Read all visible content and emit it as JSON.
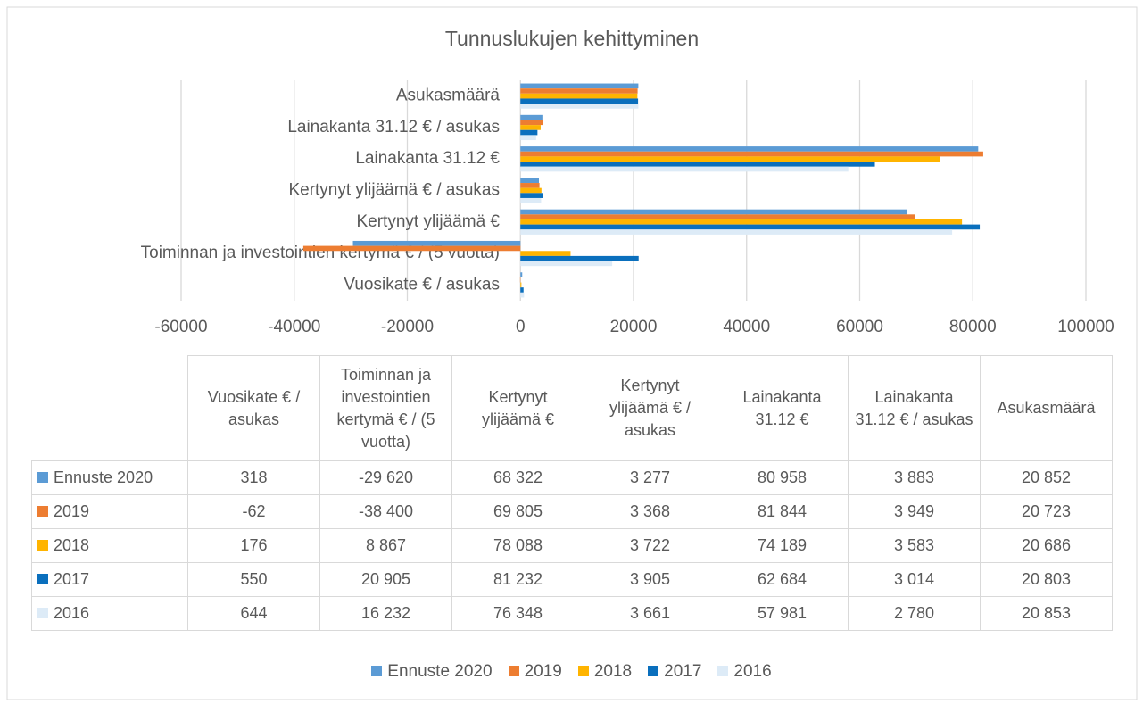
{
  "chart_data": {
    "type": "bar",
    "orientation": "horizontal",
    "title": "Tunnuslukujen kehittyminen",
    "categories": [
      "Vuosikate € / asukas",
      "Toiminnan ja investointien kertymä € / (5 vuotta)",
      "Kertynyt ylijäämä €",
      "Kertynyt ylijäämä € / asukas",
      "Lainakanta 31.12 €",
      "Lainakanta 31.12 € / asukas",
      "Asukasmäärä"
    ],
    "series": [
      {
        "name": "Ennuste 2020",
        "color": "#5b9bd5",
        "values": [
          318,
          -29620,
          68322,
          3277,
          80958,
          3883,
          20852
        ],
        "value_labels": [
          "318",
          "-29 620",
          "68 322",
          "3 277",
          "80 958",
          "3 883",
          "20 852"
        ]
      },
      {
        "name": "2019",
        "color": "#ed7d31",
        "values": [
          -62,
          -38400,
          69805,
          3368,
          81844,
          3949,
          20723
        ],
        "value_labels": [
          "-62",
          "-38 400",
          "69 805",
          "3 368",
          "81 844",
          "3 949",
          "20 723"
        ]
      },
      {
        "name": "2018",
        "color": "#ffb400",
        "values": [
          176,
          8867,
          78088,
          3722,
          74189,
          3583,
          20686
        ],
        "value_labels": [
          "176",
          "8 867",
          "78 088",
          "3 722",
          "74 189",
          "3 583",
          "20 686"
        ]
      },
      {
        "name": "2017",
        "color": "#0a6fbd",
        "values": [
          550,
          20905,
          81232,
          3905,
          62684,
          3014,
          20803
        ],
        "value_labels": [
          "550",
          "20 905",
          "81 232",
          "3 905",
          "62 684",
          "3 014",
          "20 803"
        ]
      },
      {
        "name": "2016",
        "color": "#ddebf7",
        "values": [
          644,
          16232,
          76348,
          3661,
          57981,
          2780,
          20853
        ],
        "value_labels": [
          "644",
          "16 232",
          "76 348",
          "3 661",
          "57 981",
          "2 780",
          "20 853"
        ]
      }
    ],
    "xlim": [
      -60000,
      100000
    ],
    "xticks": [
      -60000,
      -40000,
      -20000,
      0,
      20000,
      40000,
      60000,
      80000,
      100000
    ],
    "grid": true,
    "legend": "bottom",
    "data_table": true
  }
}
